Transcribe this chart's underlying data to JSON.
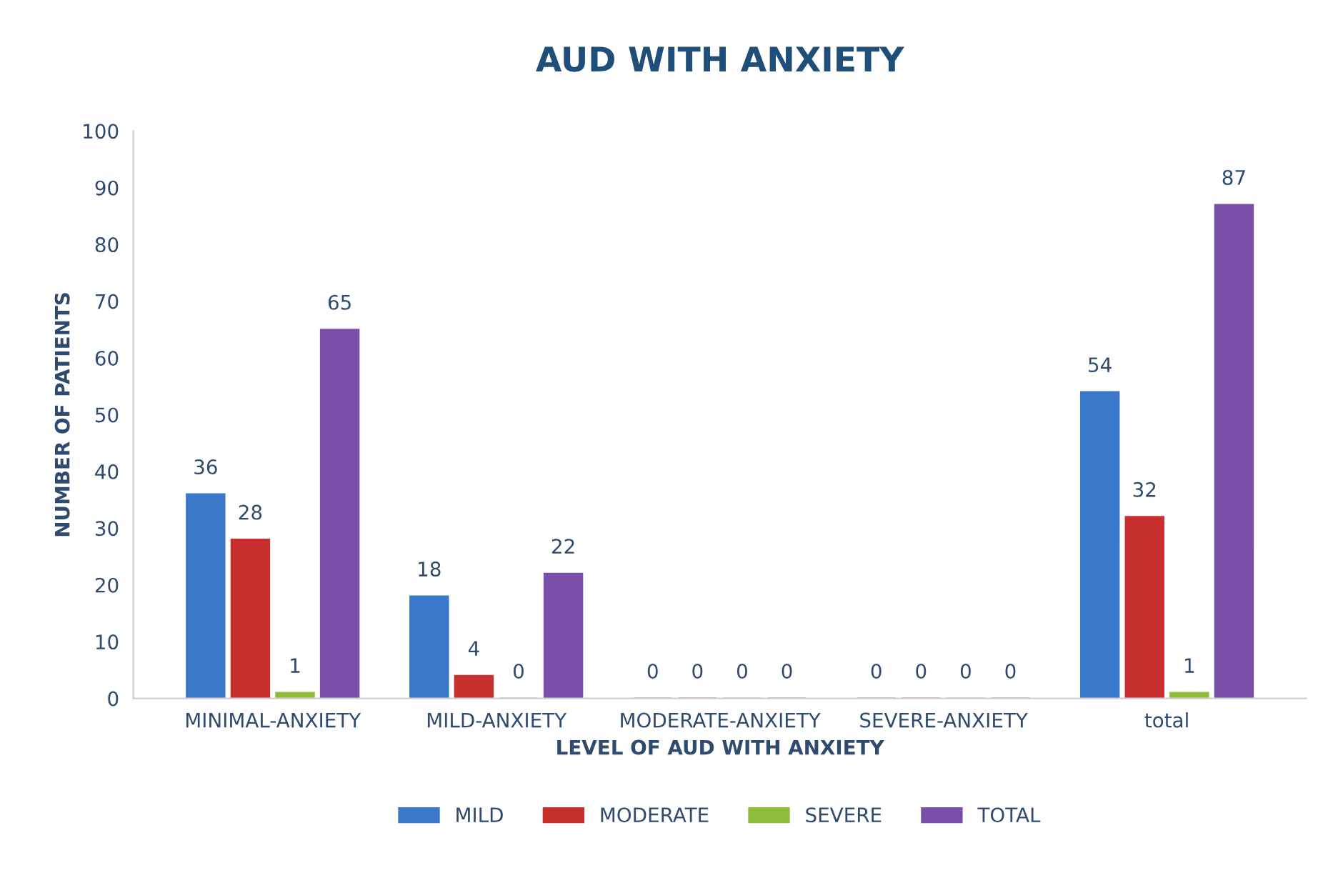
{
  "chart_data": {
    "type": "bar",
    "title": "AUD WITH ANXIETY",
    "xlabel": "LEVEL OF AUD WITH ANXIETY",
    "ylabel": "NUMBER OF PATIENTS",
    "categories": [
      "MINIMAL-ANXIETY",
      "MILD-ANXIETY",
      "MODERATE-ANXIETY",
      "SEVERE-ANXIETY",
      "total"
    ],
    "series": [
      {
        "name": "MILD",
        "color": "#3a78c9",
        "values": [
          36,
          18,
          0,
          0,
          54
        ]
      },
      {
        "name": "MODERATE",
        "color": "#c8302e",
        "values": [
          28,
          4,
          0,
          0,
          32
        ]
      },
      {
        "name": "SEVERE",
        "color": "#8fbc3a",
        "values": [
          1,
          0,
          0,
          0,
          1
        ]
      },
      {
        "name": "TOTAL",
        "color": "#7a4fa8",
        "values": [
          65,
          22,
          0,
          0,
          87
        ]
      }
    ],
    "ylim": [
      0,
      100
    ],
    "yticks": [
      0,
      10,
      20,
      30,
      40,
      50,
      60,
      70,
      80,
      90,
      100
    ],
    "data_labels": true,
    "legend": "bottom",
    "grid": false
  }
}
